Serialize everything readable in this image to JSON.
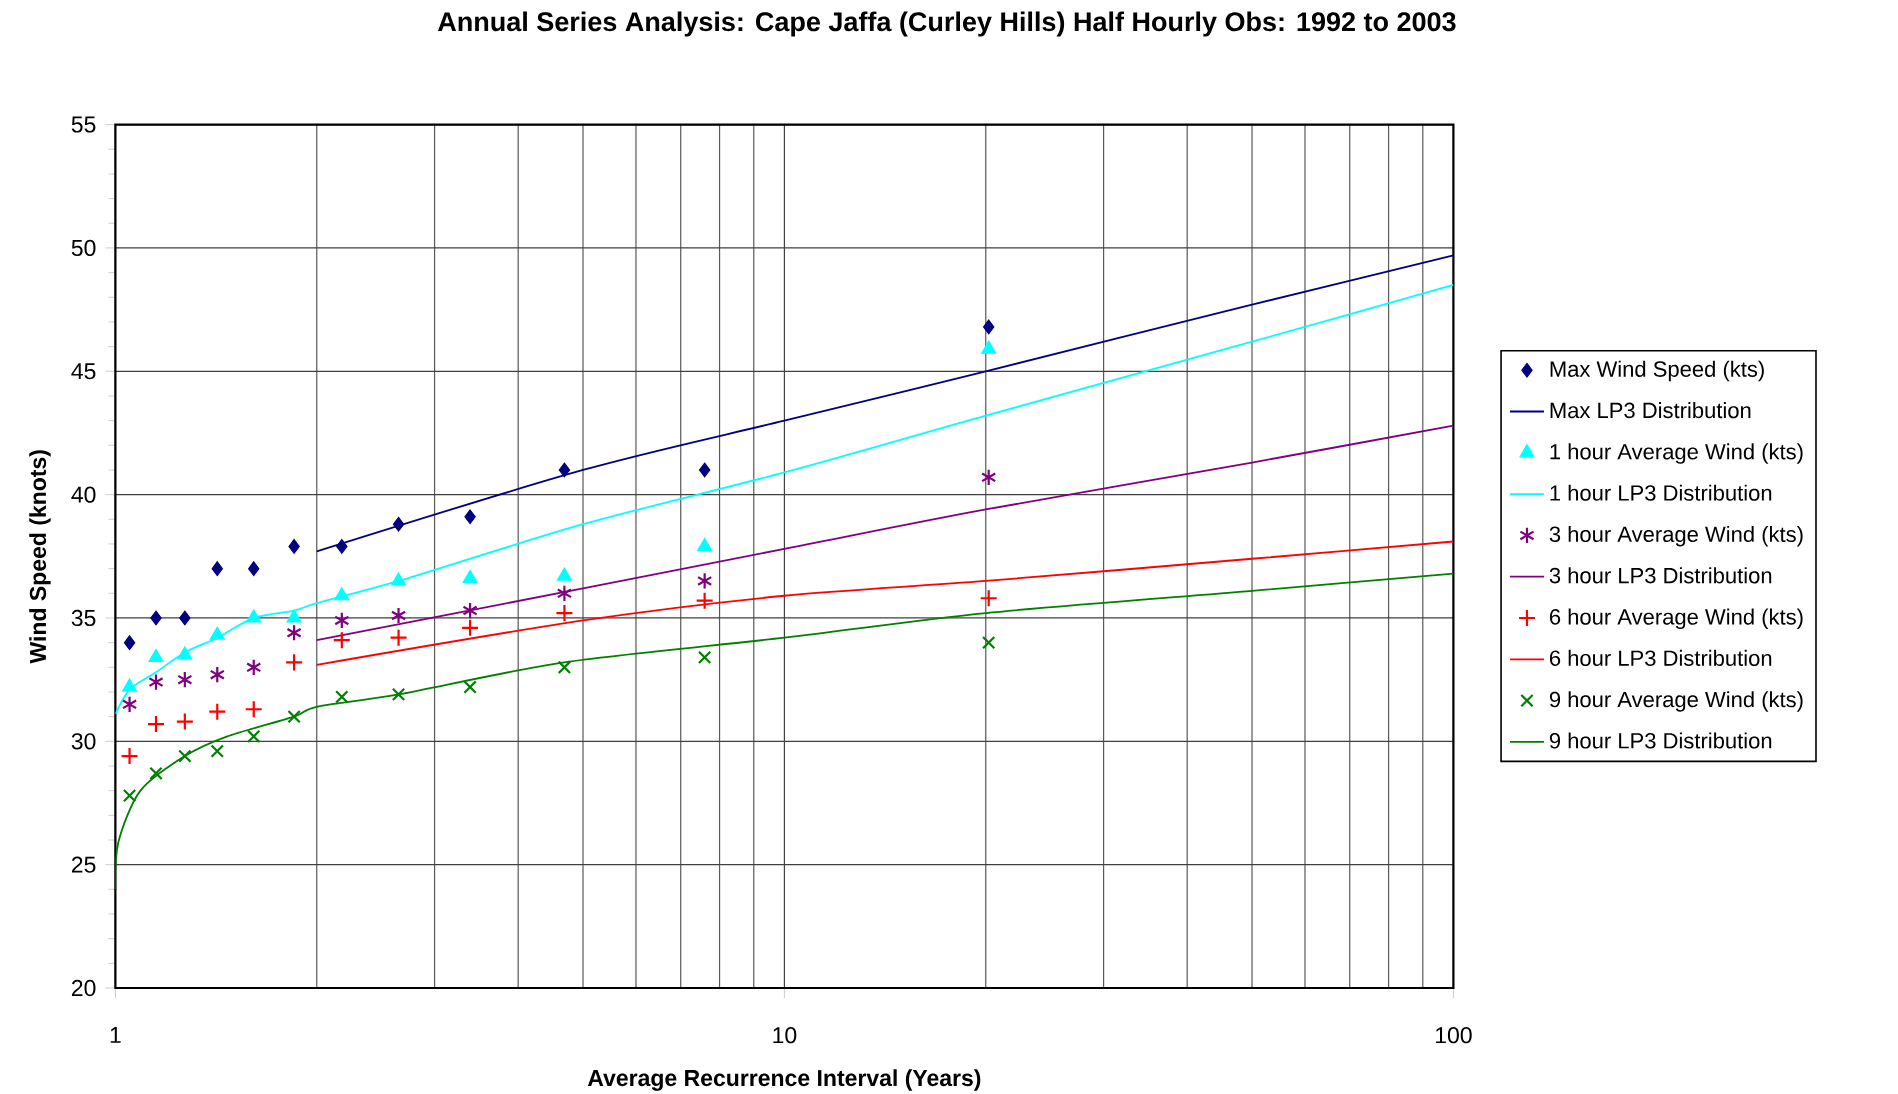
{
  "chart_data": {
    "type": "scatter",
    "title": "Annual Series Analysis: Cape Jaffa (Curley Hills) Half Hourly Obs: 1992 to 2003",
    "xlabel": "Average Recurrence Interval (Years)",
    "ylabel": "Wind Speed (knots)",
    "log": "x",
    "grid": true,
    "legend": "right",
    "xlim": [
      1,
      100
    ],
    "ylim": [
      20,
      55
    ],
    "xticks": [
      1,
      {
        "value": 2,
        "label": null
      },
      {
        "value": 3,
        "label": null
      },
      {
        "value": 4,
        "label": null
      },
      {
        "value": 5,
        "label": null
      },
      {
        "value": 6,
        "label": null
      },
      {
        "value": 7,
        "label": null
      },
      {
        "value": 8,
        "label": null
      },
      {
        "value": 9,
        "label": null
      },
      10,
      {
        "value": 20,
        "label": null
      },
      {
        "value": 30,
        "label": null
      },
      {
        "value": 40,
        "label": null
      },
      {
        "value": 50,
        "label": null
      },
      {
        "value": 60,
        "label": null
      },
      {
        "value": 70,
        "label": null
      },
      {
        "value": 80,
        "label": null
      },
      {
        "value": 90,
        "label": null
      },
      100
    ],
    "yticks": [
      20,
      {
        "value": 21,
        "label": null
      },
      {
        "value": 22,
        "label": null
      },
      {
        "value": 23,
        "label": null
      },
      {
        "value": 24,
        "label": null
      },
      25,
      {
        "value": 26,
        "label": null
      },
      {
        "value": 27,
        "label": null
      },
      {
        "value": 28,
        "label": null
      },
      {
        "value": 29,
        "label": null
      },
      30,
      {
        "value": 31,
        "label": null
      },
      {
        "value": 32,
        "label": null
      },
      {
        "value": 33,
        "label": null
      },
      {
        "value": 34,
        "label": null
      },
      35,
      {
        "value": 36,
        "label": null
      },
      {
        "value": 37,
        "label": null
      },
      {
        "value": 38,
        "label": null
      },
      {
        "value": 39,
        "label": null
      },
      40,
      {
        "value": 41,
        "label": null
      },
      {
        "value": 42,
        "label": null
      },
      {
        "value": 43,
        "label": null
      },
      {
        "value": 44,
        "label": null
      },
      45,
      {
        "value": 46,
        "label": null
      },
      {
        "value": 47,
        "label": null
      },
      {
        "value": 48,
        "label": null
      },
      {
        "value": 49,
        "label": null
      },
      50,
      {
        "value": 51,
        "label": null
      },
      {
        "value": 52,
        "label": null
      },
      {
        "value": 53,
        "label": null
      },
      {
        "value": 54,
        "label": null
      },
      55
    ],
    "series": [
      {
        "name": "Max Wind Speed (kts)",
        "marker": "diamond",
        "color": "#000080",
        "x": [
          1.05,
          1.15,
          1.27,
          1.42,
          1.61,
          1.85,
          2.18,
          2.65,
          3.39,
          4.69,
          7.6,
          20.2
        ],
        "values": [
          34.0,
          35.0,
          35.0,
          37.0,
          37.0,
          37.9,
          37.9,
          38.8,
          39.1,
          41.0,
          41.0,
          46.8
        ]
      },
      {
        "name": "Max LP3 Distribution",
        "type": "line",
        "color": "#000080",
        "x": [
          2,
          5,
          10,
          20,
          50,
          100
        ],
        "values": [
          37.7,
          41.0,
          43.0,
          45.0,
          47.7,
          49.7
        ]
      },
      {
        "name": "1 hour Average Wind (kts)",
        "marker": "triangle",
        "color": "#00ffff",
        "x": [
          1.05,
          1.15,
          1.27,
          1.42,
          1.61,
          1.85,
          2.18,
          2.65,
          3.39,
          4.69,
          7.6,
          20.2
        ],
        "values": [
          32.2,
          33.4,
          33.5,
          34.3,
          35.0,
          35.0,
          35.9,
          36.5,
          36.6,
          36.7,
          37.9,
          45.9
        ]
      },
      {
        "name": "1 hour LP3 Distribution",
        "type": "line",
        "color": "#00ffff",
        "x": [
          1.0,
          1.05,
          1.15,
          1.27,
          1.42,
          1.61,
          1.85,
          2,
          2.65,
          5,
          10,
          20,
          50,
          100
        ],
        "values": [
          31.1,
          32.1,
          32.8,
          33.6,
          34.2,
          35.0,
          35.3,
          35.6,
          36.5,
          38.8,
          40.9,
          43.2,
          46.2,
          48.5
        ]
      },
      {
        "name": "3 hour Average Wind (kts)",
        "color": "#800080",
        "x": [
          1.05,
          1.15,
          1.27,
          1.42,
          1.61,
          1.85,
          2.18,
          2.65,
          3.39,
          4.69,
          7.6,
          20.2
        ],
        "values": [
          31.5,
          32.4,
          32.5,
          32.7,
          33.0,
          34.4,
          34.9,
          35.1,
          35.3,
          36.0,
          36.5,
          40.7
        ]
      },
      {
        "name": "3 hour LP3 Distribution",
        "type": "line",
        "color": "#800080",
        "x": [
          2,
          5,
          10,
          20,
          50,
          100
        ],
        "values": [
          34.1,
          36.2,
          37.8,
          39.4,
          41.3,
          42.8
        ]
      },
      {
        "name": "6 hour Average Wind (kts)",
        "marker": "plus",
        "color": "#ff0000",
        "x": [
          1.05,
          1.15,
          1.27,
          1.42,
          1.61,
          1.85,
          2.18,
          2.65,
          3.39,
          4.69,
          7.6,
          20.2
        ],
        "values": [
          29.4,
          30.7,
          30.8,
          31.2,
          31.3,
          33.2,
          34.1,
          34.2,
          34.6,
          35.2,
          35.7,
          35.8
        ]
      },
      {
        "name": "6 hour LP3 Distribution",
        "type": "line",
        "color": "#ff0000",
        "x": [
          2,
          5,
          10,
          20,
          50,
          100
        ],
        "values": [
          33.1,
          34.9,
          35.9,
          36.5,
          37.4,
          38.1
        ]
      },
      {
        "name": "9 hour Average Wind (kts)",
        "marker": "cross",
        "color": "#008000",
        "x": [
          1.05,
          1.15,
          1.27,
          1.42,
          1.61,
          1.85,
          2.18,
          2.65,
          3.39,
          4.69,
          7.6,
          20.2
        ],
        "values": [
          27.8,
          28.7,
          29.4,
          29.6,
          30.2,
          31.0,
          31.8,
          31.9,
          32.2,
          33.0,
          33.4,
          34.0
        ]
      },
      {
        "name": "9 hour LP3 Distribution",
        "type": "line",
        "color": "#008000",
        "x": [
          1.0,
          1.01,
          1.09,
          1.27,
          1.47,
          1.85,
          2,
          2.65,
          4.69,
          10,
          20,
          50,
          100
        ],
        "values": [
          24.0,
          25.9,
          28.0,
          29.4,
          30.2,
          31.0,
          31.4,
          31.9,
          33.2,
          34.2,
          35.2,
          36.1,
          36.8
        ]
      }
    ]
  }
}
